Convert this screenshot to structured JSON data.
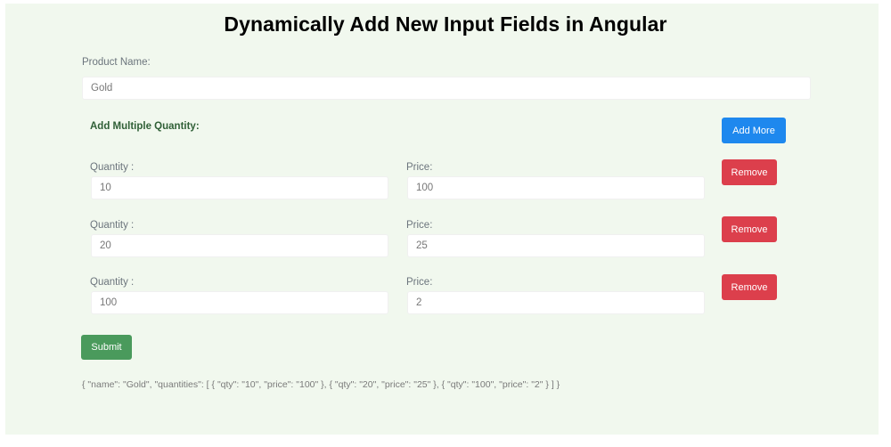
{
  "title": "Dynamically Add New Input Fields in Angular",
  "product": {
    "label": "Product Name:",
    "value": "Gold"
  },
  "section_heading": "Add Multiple Quantity:",
  "add_more_label": "Add More",
  "rows": [
    {
      "qty_label": "Quantity :",
      "qty": "10",
      "price_label": "Price:",
      "price": "100",
      "remove_label": "Remove"
    },
    {
      "qty_label": "Quantity :",
      "qty": "20",
      "price_label": "Price:",
      "price": "25",
      "remove_label": "Remove"
    },
    {
      "qty_label": "Quantity :",
      "qty": "100",
      "price_label": "Price:",
      "price": "2",
      "remove_label": "Remove"
    }
  ],
  "submit_label": "Submit",
  "output_json": "{ \"name\": \"Gold\", \"quantities\": [ { \"qty\": \"10\", \"price\": \"100\" }, { \"qty\": \"20\", \"price\": \"25\" }, { \"qty\": \"100\", \"price\": \"2\" } ] }",
  "colors": {
    "panel_bg": "#f1f8ee",
    "primary": "#1e88ee",
    "danger": "#dc3f4c",
    "success": "#4a9a5c",
    "heading": "#2f5f36"
  }
}
